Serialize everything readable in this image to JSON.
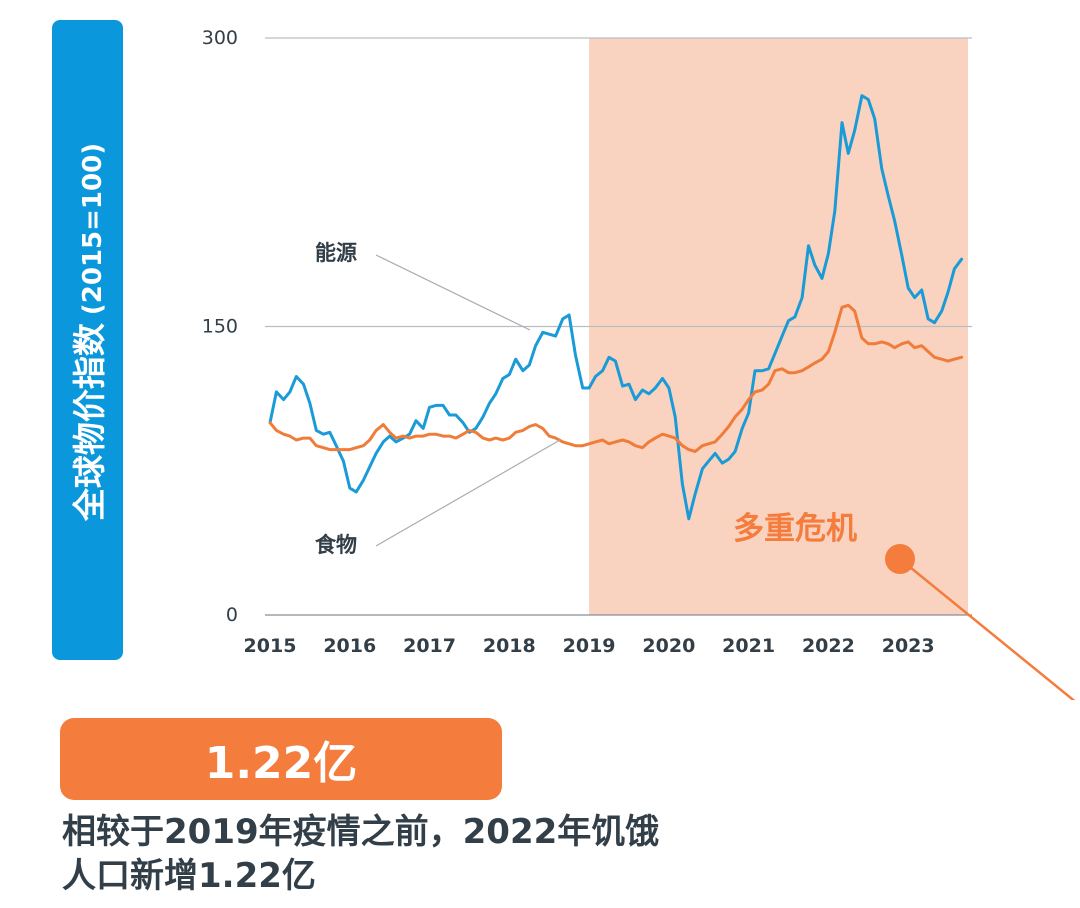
{
  "chart_data": {
    "type": "line",
    "ylabel": "全球物价指数",
    "ylabel_unit": "(2015=100)",
    "ylim": [
      0,
      300
    ],
    "yticks": [
      "300",
      "150",
      "0"
    ],
    "x_tick_labels": [
      "2015",
      "2016",
      "2017",
      "2018",
      "2019",
      "2020",
      "2021",
      "2022",
      "2023"
    ],
    "x_range": [
      2015.0,
      2023.75
    ],
    "highlight": {
      "label": "多重危机",
      "start": 2019.0,
      "end": 2023.75,
      "color": "#f9d3bf"
    },
    "series": [
      {
        "name": "能源",
        "color": "#1a9bd7",
        "points": [
          [
            2015.0,
            100
          ],
          [
            2015.08,
            116
          ],
          [
            2015.17,
            112
          ],
          [
            2015.25,
            116
          ],
          [
            2015.33,
            124
          ],
          [
            2015.42,
            120
          ],
          [
            2015.5,
            110
          ],
          [
            2015.58,
            96
          ],
          [
            2015.67,
            94
          ],
          [
            2015.75,
            95
          ],
          [
            2015.83,
            88
          ],
          [
            2015.92,
            80
          ],
          [
            2016.0,
            66
          ],
          [
            2016.08,
            64
          ],
          [
            2016.17,
            70
          ],
          [
            2016.25,
            77
          ],
          [
            2016.33,
            84
          ],
          [
            2016.42,
            90
          ],
          [
            2016.5,
            93
          ],
          [
            2016.58,
            90
          ],
          [
            2016.67,
            92
          ],
          [
            2016.75,
            94
          ],
          [
            2016.83,
            101
          ],
          [
            2016.92,
            97
          ],
          [
            2017.0,
            108
          ],
          [
            2017.08,
            109
          ],
          [
            2017.17,
            109
          ],
          [
            2017.25,
            104
          ],
          [
            2017.33,
            104
          ],
          [
            2017.42,
            100
          ],
          [
            2017.5,
            95
          ],
          [
            2017.58,
            97
          ],
          [
            2017.67,
            103
          ],
          [
            2017.75,
            110
          ],
          [
            2017.83,
            115
          ],
          [
            2017.92,
            123
          ],
          [
            2018.0,
            125
          ],
          [
            2018.08,
            133
          ],
          [
            2018.17,
            127
          ],
          [
            2018.25,
            130
          ],
          [
            2018.33,
            140
          ],
          [
            2018.42,
            147
          ],
          [
            2018.5,
            146
          ],
          [
            2018.58,
            145
          ],
          [
            2018.67,
            154
          ],
          [
            2018.75,
            156
          ],
          [
            2018.83,
            135
          ],
          [
            2018.92,
            118
          ],
          [
            2019.0,
            118
          ],
          [
            2019.08,
            124
          ],
          [
            2019.17,
            127
          ],
          [
            2019.25,
            134
          ],
          [
            2019.33,
            132
          ],
          [
            2019.42,
            119
          ],
          [
            2019.5,
            120
          ],
          [
            2019.58,
            112
          ],
          [
            2019.67,
            117
          ],
          [
            2019.75,
            115
          ],
          [
            2019.83,
            118
          ],
          [
            2019.92,
            123
          ],
          [
            2020.0,
            118
          ],
          [
            2020.08,
            103
          ],
          [
            2020.17,
            68
          ],
          [
            2020.25,
            50
          ],
          [
            2020.33,
            63
          ],
          [
            2020.42,
            76
          ],
          [
            2020.5,
            80
          ],
          [
            2020.58,
            84
          ],
          [
            2020.67,
            79
          ],
          [
            2020.75,
            81
          ],
          [
            2020.83,
            85
          ],
          [
            2020.92,
            97
          ],
          [
            2021.0,
            105
          ],
          [
            2021.08,
            127
          ],
          [
            2021.17,
            127
          ],
          [
            2021.25,
            128
          ],
          [
            2021.33,
            136
          ],
          [
            2021.42,
            145
          ],
          [
            2021.5,
            153
          ],
          [
            2021.58,
            155
          ],
          [
            2021.67,
            165
          ],
          [
            2021.75,
            192
          ],
          [
            2021.83,
            182
          ],
          [
            2021.92,
            175
          ],
          [
            2022.0,
            188
          ],
          [
            2022.08,
            210
          ],
          [
            2022.17,
            256
          ],
          [
            2022.25,
            240
          ],
          [
            2022.33,
            252
          ],
          [
            2022.42,
            270
          ],
          [
            2022.5,
            268
          ],
          [
            2022.58,
            258
          ],
          [
            2022.67,
            232
          ],
          [
            2022.75,
            218
          ],
          [
            2022.83,
            205
          ],
          [
            2022.92,
            187
          ],
          [
            2023.0,
            170
          ],
          [
            2023.08,
            165
          ],
          [
            2023.17,
            169
          ],
          [
            2023.25,
            154
          ],
          [
            2023.33,
            152
          ],
          [
            2023.42,
            158
          ],
          [
            2023.5,
            168
          ],
          [
            2023.58,
            180
          ],
          [
            2023.67,
            185
          ]
        ]
      },
      {
        "name": "食物",
        "color": "#f07c3a",
        "points": [
          [
            2015.0,
            100
          ],
          [
            2015.08,
            96
          ],
          [
            2015.17,
            94
          ],
          [
            2015.25,
            93
          ],
          [
            2015.33,
            91
          ],
          [
            2015.42,
            92
          ],
          [
            2015.5,
            92
          ],
          [
            2015.58,
            88
          ],
          [
            2015.67,
            87
          ],
          [
            2015.75,
            86
          ],
          [
            2015.83,
            86
          ],
          [
            2015.92,
            86
          ],
          [
            2016.0,
            86
          ],
          [
            2016.08,
            87
          ],
          [
            2016.17,
            88
          ],
          [
            2016.25,
            91
          ],
          [
            2016.33,
            96
          ],
          [
            2016.42,
            99
          ],
          [
            2016.5,
            95
          ],
          [
            2016.58,
            92
          ],
          [
            2016.67,
            93
          ],
          [
            2016.75,
            92
          ],
          [
            2016.83,
            93
          ],
          [
            2016.92,
            93
          ],
          [
            2017.0,
            94
          ],
          [
            2017.08,
            94
          ],
          [
            2017.17,
            93
          ],
          [
            2017.25,
            93
          ],
          [
            2017.33,
            92
          ],
          [
            2017.42,
            94
          ],
          [
            2017.5,
            96
          ],
          [
            2017.58,
            95
          ],
          [
            2017.67,
            92
          ],
          [
            2017.75,
            91
          ],
          [
            2017.83,
            92
          ],
          [
            2017.92,
            91
          ],
          [
            2018.0,
            92
          ],
          [
            2018.08,
            95
          ],
          [
            2018.17,
            96
          ],
          [
            2018.25,
            98
          ],
          [
            2018.33,
            99
          ],
          [
            2018.42,
            97
          ],
          [
            2018.5,
            93
          ],
          [
            2018.58,
            92
          ],
          [
            2018.67,
            90
          ],
          [
            2018.75,
            89
          ],
          [
            2018.83,
            88
          ],
          [
            2018.92,
            88
          ],
          [
            2019.0,
            89
          ],
          [
            2019.08,
            90
          ],
          [
            2019.17,
            91
          ],
          [
            2019.25,
            89
          ],
          [
            2019.33,
            90
          ],
          [
            2019.42,
            91
          ],
          [
            2019.5,
            90
          ],
          [
            2019.58,
            88
          ],
          [
            2019.67,
            87
          ],
          [
            2019.75,
            90
          ],
          [
            2019.83,
            92
          ],
          [
            2019.92,
            94
          ],
          [
            2020.0,
            93
          ],
          [
            2020.08,
            92
          ],
          [
            2020.17,
            88
          ],
          [
            2020.25,
            86
          ],
          [
            2020.33,
            85
          ],
          [
            2020.42,
            88
          ],
          [
            2020.5,
            89
          ],
          [
            2020.58,
            90
          ],
          [
            2020.67,
            94
          ],
          [
            2020.75,
            98
          ],
          [
            2020.83,
            103
          ],
          [
            2020.92,
            107
          ],
          [
            2021.0,
            112
          ],
          [
            2021.08,
            116
          ],
          [
            2021.17,
            117
          ],
          [
            2021.25,
            120
          ],
          [
            2021.33,
            127
          ],
          [
            2021.42,
            128
          ],
          [
            2021.5,
            126
          ],
          [
            2021.58,
            126
          ],
          [
            2021.67,
            127
          ],
          [
            2021.75,
            129
          ],
          [
            2021.83,
            131
          ],
          [
            2021.92,
            133
          ],
          [
            2022.0,
            137
          ],
          [
            2022.08,
            147
          ],
          [
            2022.17,
            160
          ],
          [
            2022.25,
            161
          ],
          [
            2022.33,
            158
          ],
          [
            2022.42,
            144
          ],
          [
            2022.5,
            141
          ],
          [
            2022.58,
            141
          ],
          [
            2022.67,
            142
          ],
          [
            2022.75,
            141
          ],
          [
            2022.83,
            139
          ],
          [
            2022.92,
            141
          ],
          [
            2023.0,
            142
          ],
          [
            2023.08,
            139
          ],
          [
            2023.17,
            140
          ],
          [
            2023.25,
            137
          ],
          [
            2023.33,
            134
          ],
          [
            2023.42,
            133
          ],
          [
            2023.5,
            132
          ],
          [
            2023.58,
            133
          ],
          [
            2023.67,
            134
          ]
        ]
      }
    ],
    "annotations": [
      {
        "text": "能源",
        "series": "能源"
      },
      {
        "text": "食物",
        "series": "食物"
      }
    ]
  },
  "stat": {
    "value": "1.22亿"
  },
  "caption": {
    "line1": "相较于2019年疫情之前，2022年饥饿",
    "line2": "人口新增1.22亿"
  }
}
